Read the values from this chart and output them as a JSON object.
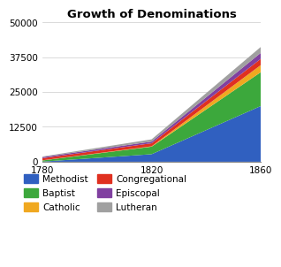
{
  "title": "Growth of Denominations",
  "years": [
    1780,
    1820,
    1860
  ],
  "denominations": [
    "Methodist",
    "Baptist",
    "Catholic",
    "Congregational",
    "Episcopal",
    "Lutheran"
  ],
  "values": {
    "Methodist": [
      50,
      2700,
      20000
    ],
    "Baptist": [
      400,
      2700,
      12150
    ],
    "Catholic": [
      50,
      124,
      2550
    ],
    "Congregational": [
      750,
      1100,
      2234
    ],
    "Episcopal": [
      400,
      600,
      2145
    ],
    "Lutheran": [
      200,
      800,
      2128
    ]
  },
  "colors": {
    "Methodist": "#3060c0",
    "Baptist": "#3ca83c",
    "Catholic": "#f0a820",
    "Congregational": "#e03020",
    "Episcopal": "#8040a0",
    "Lutheran": "#a0a0a0"
  },
  "ylim": [
    0,
    50000
  ],
  "yticks": [
    0,
    12500,
    25000,
    37500,
    50000
  ],
  "xticks": [
    1780,
    1820,
    1860
  ],
  "background_color": "#ffffff",
  "legend_col1": [
    "Methodist",
    "Catholic",
    "Episcopal"
  ],
  "legend_col2": [
    "Baptist",
    "Congregational",
    "Lutheran"
  ]
}
